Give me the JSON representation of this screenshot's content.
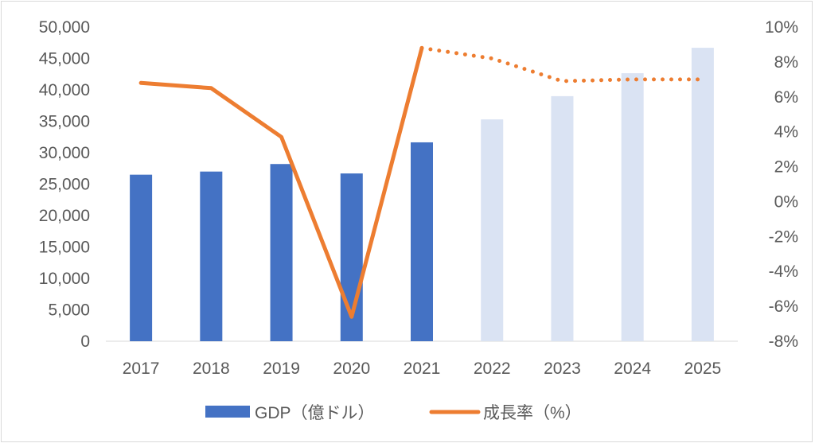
{
  "chart_data": {
    "type": "bar+line",
    "title": "",
    "categories": [
      "2017",
      "2018",
      "2019",
      "2020",
      "2021",
      "2022",
      "2023",
      "2024",
      "2025"
    ],
    "series": [
      {
        "name": "GDP（億ドル）",
        "axis": "left",
        "type": "bar",
        "values": [
          26500,
          27000,
          28200,
          26700,
          31650,
          35300,
          39000,
          42650,
          46700
        ],
        "forecast_from": "2022",
        "color": "#4472C4",
        "forecast_color": "#DAE3F3"
      },
      {
        "name": "成長率（%）",
        "axis": "right",
        "type": "line",
        "values": [
          6.8,
          6.5,
          3.7,
          -6.6,
          8.8,
          8.2,
          6.9,
          7.0,
          7.0
        ],
        "forecast_from": "2021",
        "forecast_style": "dotted",
        "color": "#ED7D31"
      }
    ],
    "left_axis": {
      "ylim": [
        0,
        50000
      ],
      "ticks": [
        "0",
        "5,000",
        "10,000",
        "15,000",
        "20,000",
        "25,000",
        "30,000",
        "35,000",
        "40,000",
        "45,000",
        "50,000"
      ]
    },
    "right_axis": {
      "ylim": [
        -8,
        10
      ],
      "ticks": [
        "-8%",
        "-6%",
        "-4%",
        "-2%",
        "0%",
        "2%",
        "4%",
        "6%",
        "8%",
        "10%"
      ]
    },
    "grid": false,
    "legend_position": "bottom"
  }
}
